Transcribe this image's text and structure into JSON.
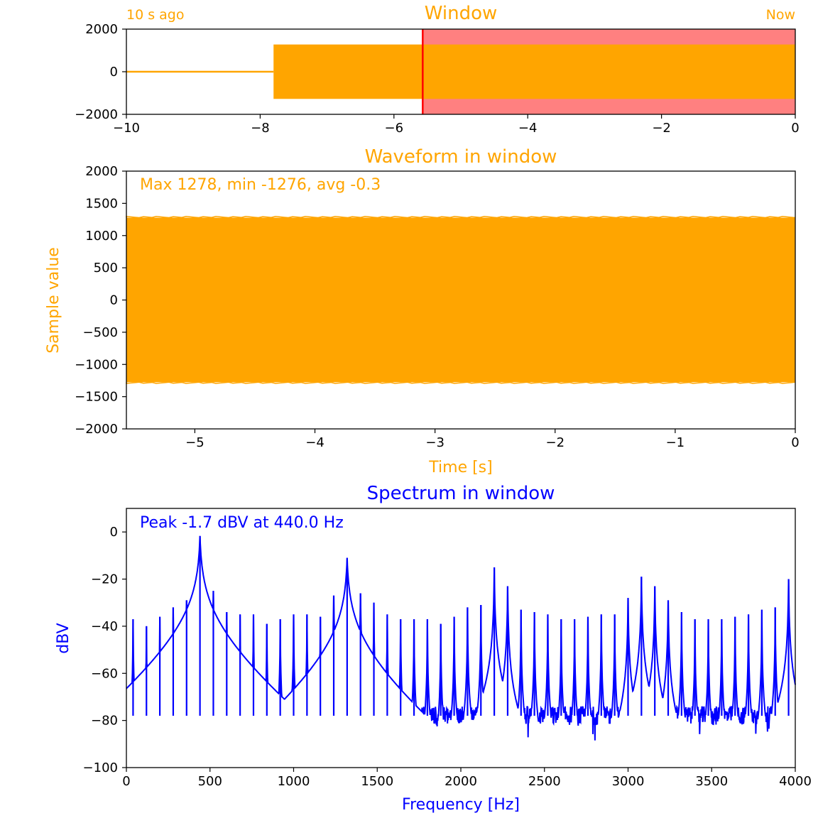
{
  "colors": {
    "orange": "#FFA500",
    "blue": "#0000FF",
    "window_fill": "#FF8080",
    "window_edge": "#FF0000",
    "axis": "#000000"
  },
  "chart_data": [
    {
      "type": "line",
      "title": "Window",
      "left_note": "10 s ago",
      "right_note": "Now",
      "xlim": [
        -10,
        0
      ],
      "ylim": [
        -2000,
        2000
      ],
      "xticks": [
        -10,
        -8,
        -6,
        -4,
        -2,
        0
      ],
      "xtick_labels": [
        "−10",
        "−8",
        "−6",
        "−4",
        "−2",
        "0"
      ],
      "yticks": [
        -2000,
        0,
        2000
      ],
      "ytick_labels": [
        "−2000",
        "0",
        "2000"
      ],
      "series": [
        {
          "x": [
            -10,
            -7.8
          ],
          "y": [
            0,
            0
          ]
        },
        {
          "x": [
            -7.8,
            0
          ],
          "y_max": 1278,
          "y_min": -1276
        }
      ],
      "window_start": -5.57,
      "window_end": 0
    },
    {
      "type": "line",
      "title": "Waveform in window",
      "xlabel": "Time [s]",
      "ylabel": "Sample value",
      "annotation": "Max 1278, min -1276, avg -0.3",
      "xlim": [
        -5.57,
        0
      ],
      "ylim": [
        -2000,
        2000
      ],
      "xticks": [
        -5,
        -4,
        -3,
        -2,
        -1,
        0
      ],
      "xtick_labels": [
        "−5",
        "−4",
        "−3",
        "−2",
        "−1",
        "0"
      ],
      "yticks": [
        -2000,
        -1500,
        -1000,
        -500,
        0,
        500,
        1000,
        1500,
        2000
      ],
      "ytick_labels": [
        "−2000",
        "−1500",
        "−1000",
        "−500",
        "0",
        "500",
        "1000",
        "1500",
        "2000"
      ],
      "envelope": {
        "max": 1278,
        "min": -1276
      }
    },
    {
      "type": "line",
      "title": "Spectrum in window",
      "xlabel": "Frequency [Hz]",
      "ylabel": "dBV",
      "annotation": "Peak -1.7 dBV at 440.0 Hz",
      "xlim": [
        0,
        4000
      ],
      "ylim": [
        -100,
        10
      ],
      "xticks": [
        0,
        500,
        1000,
        1500,
        2000,
        2500,
        3000,
        3500,
        4000
      ],
      "xtick_labels": [
        "0",
        "500",
        "1000",
        "1500",
        "2000",
        "2500",
        "3000",
        "3500",
        "4000"
      ],
      "yticks": [
        -100,
        -80,
        -60,
        -40,
        -20,
        0
      ],
      "ytick_labels": [
        "−100",
        "−80",
        "−60",
        "−40",
        "−20",
        "0"
      ],
      "peaks": [
        {
          "f": 40,
          "db": -37
        },
        {
          "f": 120,
          "db": -40
        },
        {
          "f": 200,
          "db": -36
        },
        {
          "f": 280,
          "db": -32
        },
        {
          "f": 360,
          "db": -29
        },
        {
          "f": 440,
          "db": -1.7
        },
        {
          "f": 520,
          "db": -25
        },
        {
          "f": 600,
          "db": -34
        },
        {
          "f": 680,
          "db": -35
        },
        {
          "f": 760,
          "db": -35
        },
        {
          "f": 840,
          "db": -39
        },
        {
          "f": 920,
          "db": -37
        },
        {
          "f": 1000,
          "db": -35
        },
        {
          "f": 1080,
          "db": -35
        },
        {
          "f": 1160,
          "db": -36
        },
        {
          "f": 1240,
          "db": -27
        },
        {
          "f": 1320,
          "db": -11
        },
        {
          "f": 1400,
          "db": -26
        },
        {
          "f": 1480,
          "db": -30
        },
        {
          "f": 1560,
          "db": -35
        },
        {
          "f": 1640,
          "db": -37
        },
        {
          "f": 1720,
          "db": -37
        },
        {
          "f": 1800,
          "db": -37
        },
        {
          "f": 1880,
          "db": -39
        },
        {
          "f": 1960,
          "db": -36
        },
        {
          "f": 2040,
          "db": -32
        },
        {
          "f": 2120,
          "db": -31
        },
        {
          "f": 2200,
          "db": -15
        },
        {
          "f": 2280,
          "db": -23
        },
        {
          "f": 2360,
          "db": -33
        },
        {
          "f": 2440,
          "db": -34
        },
        {
          "f": 2520,
          "db": -35
        },
        {
          "f": 2600,
          "db": -37
        },
        {
          "f": 2680,
          "db": -37
        },
        {
          "f": 2760,
          "db": -36
        },
        {
          "f": 2840,
          "db": -35
        },
        {
          "f": 2920,
          "db": -35
        },
        {
          "f": 3000,
          "db": -28
        },
        {
          "f": 3080,
          "db": -19
        },
        {
          "f": 3160,
          "db": -23
        },
        {
          "f": 3240,
          "db": -29
        },
        {
          "f": 3320,
          "db": -34
        },
        {
          "f": 3400,
          "db": -37
        },
        {
          "f": 3480,
          "db": -37
        },
        {
          "f": 3560,
          "db": -37
        },
        {
          "f": 3640,
          "db": -36
        },
        {
          "f": 3720,
          "db": -35
        },
        {
          "f": 3800,
          "db": -33
        },
        {
          "f": 3880,
          "db": -32
        },
        {
          "f": 3960,
          "db": -20
        }
      ],
      "noise_floor_db": -78
    }
  ]
}
